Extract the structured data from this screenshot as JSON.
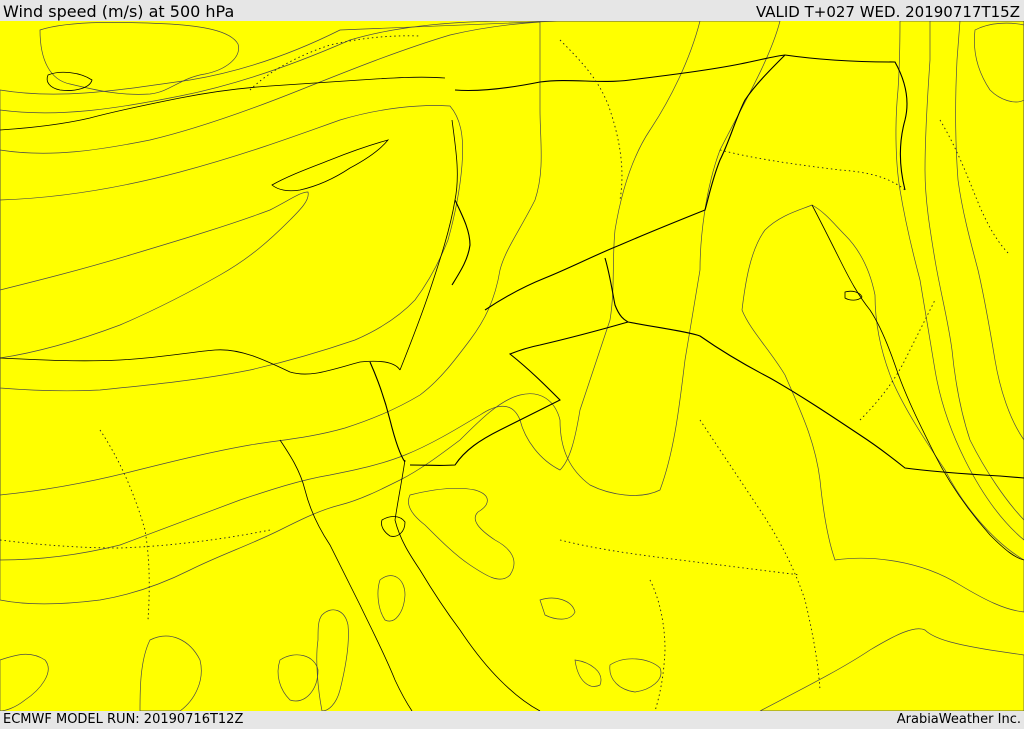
{
  "header": {
    "title": "Wind speed (m/s) at 500 hPa",
    "valid": "VALID T+027 WED. 20190717T15Z"
  },
  "footer": {
    "model_run": "ECMWF MODEL RUN: 20190716T12Z",
    "credit": "ArabiaWeather Inc."
  },
  "colors": {
    "background": "#e6e6e6",
    "sea_land_base": "#ffff00",
    "calm": "#fcdca8",
    "band_1": "#ffde00",
    "band_2": "#ffc000",
    "band_3": "#ffa200",
    "band_4": "#ff8000",
    "band_5": "#ff6200",
    "water_body": "#ffffff"
  }
}
